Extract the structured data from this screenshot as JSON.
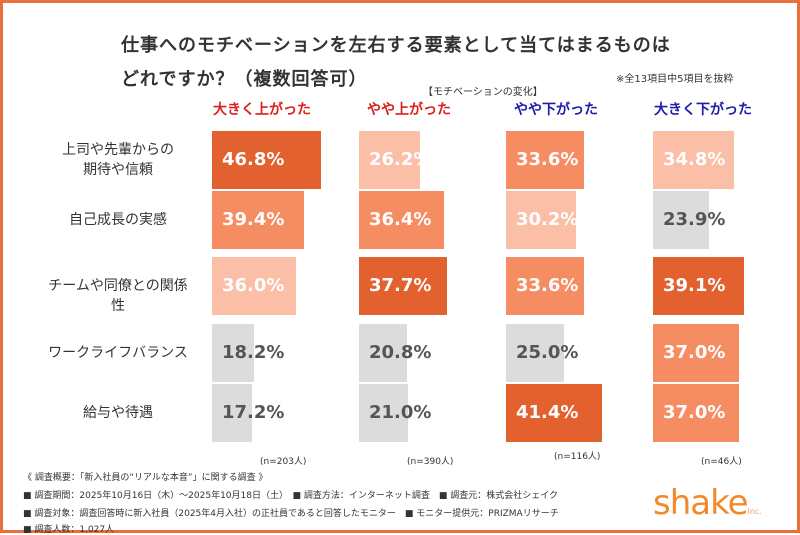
{
  "header": {
    "title_line1": "仕事へのモチベーションを左右する要素として当てはまるものは",
    "title_line2": "どれですか？（複数回答可）",
    "note": "※全13項目中5項目を抜粋",
    "subtitle": "【モチベーションの変化】"
  },
  "colors": {
    "dark": "#e2612f",
    "medium": "#f68c62",
    "light": "#fbbea7",
    "gray": "#dcdcdc",
    "frame": "#e8703a",
    "up_label": "#d9201c",
    "down_label": "#1c1ca8"
  },
  "chart_data": {
    "type": "bar",
    "orientation": "horizontal-small-multiples",
    "categories": [
      "上司や先輩からの\n期待や信頼",
      "自己成長の実感",
      "チームや同僚との関係性",
      "ワークライフバランス",
      "給与や待遇"
    ],
    "series": [
      {
        "name": "大きく上がった",
        "n": "(n=203人)",
        "values": [
          46.8,
          39.4,
          36.0,
          18.2,
          17.2
        ],
        "levels": [
          "dark",
          "medium",
          "light",
          "gray",
          "gray"
        ]
      },
      {
        "name": "やや上がった",
        "n": "(n=390人)",
        "values": [
          26.2,
          36.4,
          37.7,
          20.8,
          21.0
        ],
        "levels": [
          "light",
          "medium",
          "dark",
          "gray",
          "gray"
        ]
      },
      {
        "name": "やや下がった",
        "n": "(n=116人)",
        "values": [
          33.6,
          30.2,
          33.6,
          25.0,
          41.4
        ],
        "levels": [
          "medium",
          "light",
          "medium",
          "gray",
          "dark"
        ]
      },
      {
        "name": "大きく下がった",
        "n": "(n=46人)",
        "values": [
          34.8,
          23.9,
          39.1,
          37.0,
          37.0
        ],
        "levels": [
          "light",
          "gray",
          "dark",
          "medium",
          "medium"
        ]
      }
    ],
    "unit": "%"
  },
  "footer": {
    "summary": "《 調査概要：「新入社員の“リアルな本音”」に関する調査 》",
    "line1": "■ 調査期間：2025年10月16日（木）～2025年10月18日（土）　■ 調査方法：インターネット調査　■ 調査元：株式会社シェイク",
    "line2": "■ 調査対象：調査回答時に新入社員（2025年4月入社）の正社員であると回答したモニター　■ モニター提供元：PRIZMAリサーチ",
    "line3": "■ 調査人数：1,027人"
  },
  "logo": {
    "text": "shake",
    "suffix": "Inc."
  }
}
